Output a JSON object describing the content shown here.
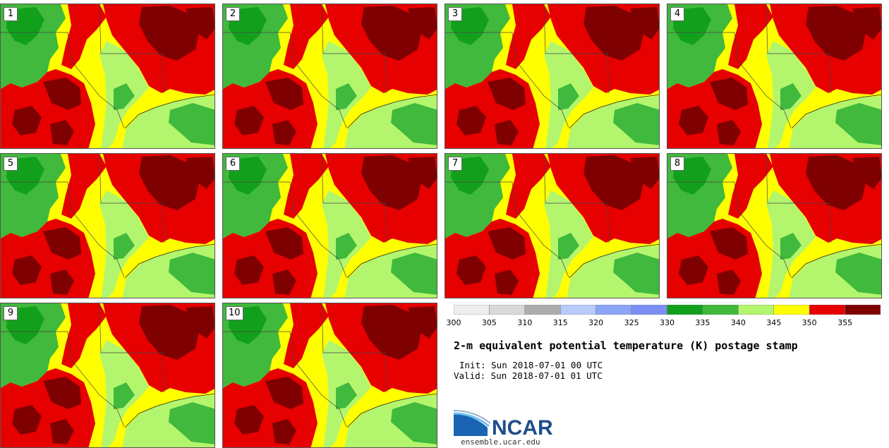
{
  "panels": [
    {
      "label": "1"
    },
    {
      "label": "2"
    },
    {
      "label": "3"
    },
    {
      "label": "4"
    },
    {
      "label": "5"
    },
    {
      "label": "6"
    },
    {
      "label": "7"
    },
    {
      "label": "8"
    },
    {
      "label": "9"
    },
    {
      "label": "10"
    }
  ],
  "colorbar": {
    "ticks": [
      "300",
      "305",
      "310",
      "315",
      "320",
      "325",
      "330",
      "335",
      "340",
      "345",
      "350",
      "355"
    ],
    "colors": [
      "#eeeeee",
      "#d9d9d9",
      "#adadad",
      "#b8cbfb",
      "#8aa4f7",
      "#7b90f4",
      "#12a01c",
      "#40b93c",
      "#b4f56e",
      "#ffff00",
      "#e60000",
      "#7f0000"
    ]
  },
  "title": "2-m equivalent potential temperature (K) postage stamp",
  "init_text": "Init: Sun 2018-07-01 00 UTC",
  "valid_text": "Valid: Sun 2018-07-01 01 UTC",
  "logo": {
    "name": "NCAR",
    "url": "ensemble.ucar.edu"
  }
}
